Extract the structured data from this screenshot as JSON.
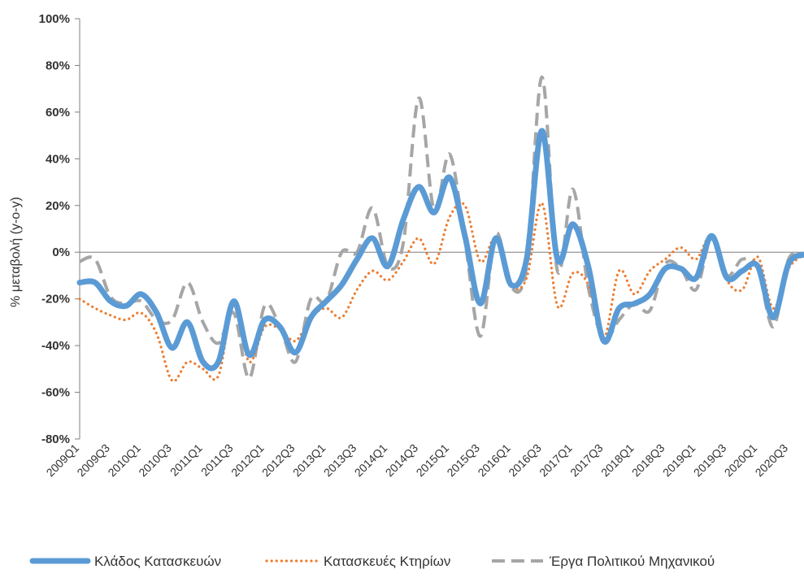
{
  "chart_data": {
    "type": "line",
    "ylabel": "% μεταβολή (y-o-y)",
    "ylim": [
      -80,
      100
    ],
    "yticks": [
      -80,
      -60,
      -40,
      -20,
      0,
      20,
      40,
      60,
      80,
      100
    ],
    "ytick_labels": [
      "-80%",
      "-60%",
      "-40%",
      "-20%",
      "0%",
      "20%",
      "40%",
      "60%",
      "80%",
      "100%"
    ],
    "grid": false,
    "legend_position": "bottom",
    "colors": {
      "axis": "#7f7f7f",
      "text": "#333333"
    },
    "x": [
      "2009Q1",
      "2009Q2",
      "2009Q3",
      "2009Q4",
      "2010Q1",
      "2010Q2",
      "2010Q3",
      "2010Q4",
      "2011Q1",
      "2011Q2",
      "2011Q3",
      "2011Q4",
      "2012Q1",
      "2012Q2",
      "2012Q3",
      "2012Q4",
      "2013Q1",
      "2013Q2",
      "2013Q3",
      "2013Q4",
      "2014Q1",
      "2014Q2",
      "2014Q3",
      "2014Q4",
      "2015Q1",
      "2015Q2",
      "2015Q3",
      "2015Q4",
      "2016Q1",
      "2016Q2",
      "2016Q3",
      "2016Q4",
      "2017Q1",
      "2017Q2",
      "2017Q3",
      "2017Q4",
      "2018Q1",
      "2018Q2",
      "2018Q3",
      "2018Q4",
      "2019Q1",
      "2019Q2",
      "2019Q3",
      "2019Q4",
      "2020Q1",
      "2020Q2",
      "2020Q3",
      "2020Q4"
    ],
    "x_tick_labels": [
      "2009Q1",
      "",
      "2009Q3",
      "",
      "2010Q1",
      "",
      "2010Q3",
      "",
      "2011Q1",
      "",
      "2011Q3",
      "",
      "2012Q1",
      "",
      "2012Q3",
      "",
      "2013Q1",
      "",
      "2013Q3",
      "",
      "2014Q1",
      "",
      "2014Q3",
      "",
      "2015Q1",
      "",
      "2015Q3",
      "",
      "2016Q1",
      "",
      "2016Q3",
      "",
      "2017Q1",
      "",
      "2017Q3",
      "",
      "2018Q1",
      "",
      "2018Q3",
      "",
      "2019Q1",
      "",
      "2019Q3",
      "",
      "2020Q1",
      "",
      "2020Q3",
      ""
    ],
    "series": [
      {
        "name": "Κλάδος Κατασκευών",
        "color": "#5b9bd5",
        "style": "solid",
        "values": [
          -13,
          -13,
          -21,
          -23,
          -18,
          -26,
          -41,
          -30,
          -47,
          -47,
          -21,
          -44,
          -29,
          -32,
          -43,
          -28,
          -21,
          -14,
          -3,
          6,
          -6,
          14,
          28,
          17,
          32,
          7,
          -22,
          6,
          -14,
          -3,
          52,
          -3,
          12,
          -6,
          -38,
          -24,
          -22,
          -18,
          -7,
          -7,
          -11,
          7,
          -11,
          -8,
          -6,
          -28,
          -5,
          -1
        ]
      },
      {
        "name": "Κατασκευές Κτηρίων",
        "color": "#ed7d31",
        "style": "dotted",
        "values": [
          -20,
          -24,
          -27,
          -29,
          -26,
          -35,
          -55,
          -47,
          -50,
          -53,
          -23,
          -47,
          -32,
          -33,
          -38,
          -28,
          -24,
          -28,
          -16,
          -8,
          -12,
          -4,
          6,
          -5,
          15,
          20,
          -4,
          6,
          -14,
          -11,
          21,
          -23,
          -9,
          -14,
          -37,
          -8,
          -18,
          -8,
          -3,
          2,
          -3,
          7,
          -12,
          -16,
          -2,
          -24,
          -7,
          -1
        ]
      },
      {
        "name": "Έργα Πολιτικού Μηχανικού",
        "color": "#a6a6a6",
        "style": "dashed",
        "values": [
          -4,
          -3,
          -19,
          -22,
          -21,
          -29,
          -29,
          -13,
          -30,
          -39,
          -26,
          -54,
          -23,
          -32,
          -47,
          -20,
          -21,
          0,
          0,
          19,
          -6,
          4,
          66,
          18,
          42,
          5,
          -36,
          8,
          -15,
          -6,
          75,
          -8,
          27,
          -15,
          -37,
          -29,
          -22,
          -25,
          -5,
          -7,
          -16,
          6,
          -10,
          -3,
          -7,
          -32,
          -3,
          -1
        ]
      }
    ]
  }
}
